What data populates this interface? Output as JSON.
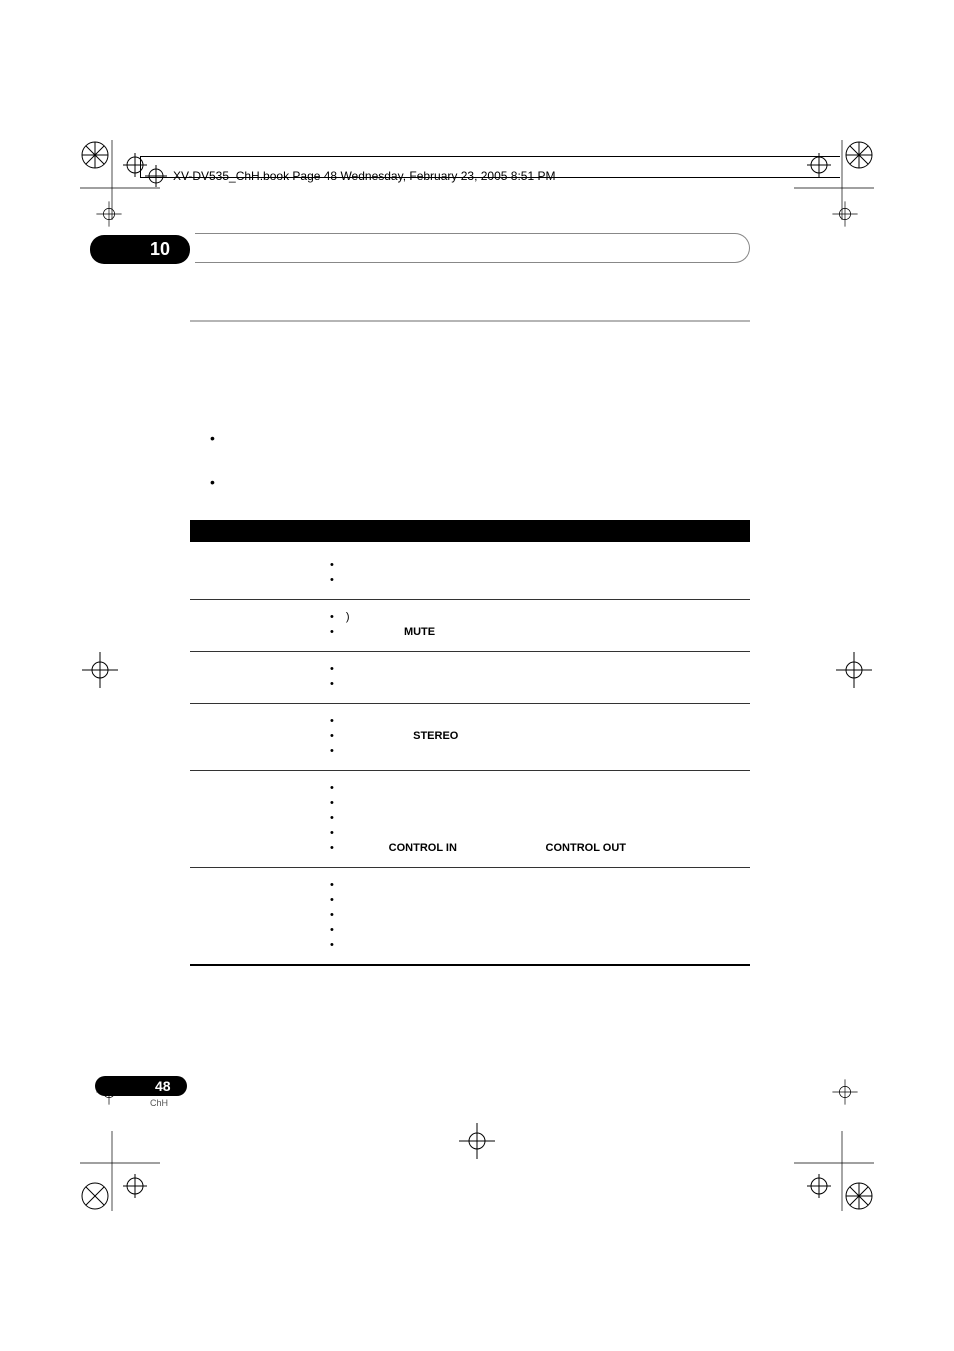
{
  "header": {
    "text": "XV-DV535_ChH.book  Page 48  Wednesday, February 23, 2005  8:51 PM"
  },
  "chapter": {
    "number": "10"
  },
  "bullets": {
    "b1": " ",
    "b2": " "
  },
  "table": {
    "rows": [
      {
        "items": [
          " ",
          " "
        ]
      },
      {
        "items": [
          "                                )",
          {
            "bold": "MUTE",
            "pre": "                   "
          }
        ]
      },
      {
        "items": [
          " ",
          " "
        ]
      },
      {
        "items": [
          " ",
          {
            "bold": "STEREO",
            "pre": "                      "
          },
          " "
        ]
      },
      {
        "items": [
          " ",
          " ",
          " ",
          " ",
          {
            "bold_pair": [
              "CONTROL IN",
              "CONTROL OUT"
            ],
            "pre": "              ",
            "gap": "                             "
          }
        ]
      },
      {
        "items": [
          " ",
          " ",
          " ",
          " ",
          " "
        ]
      }
    ]
  },
  "footer": {
    "page": "48",
    "sub": "ChH"
  },
  "colors": {
    "black": "#000000",
    "grey_rule": "#b5b5b5"
  }
}
